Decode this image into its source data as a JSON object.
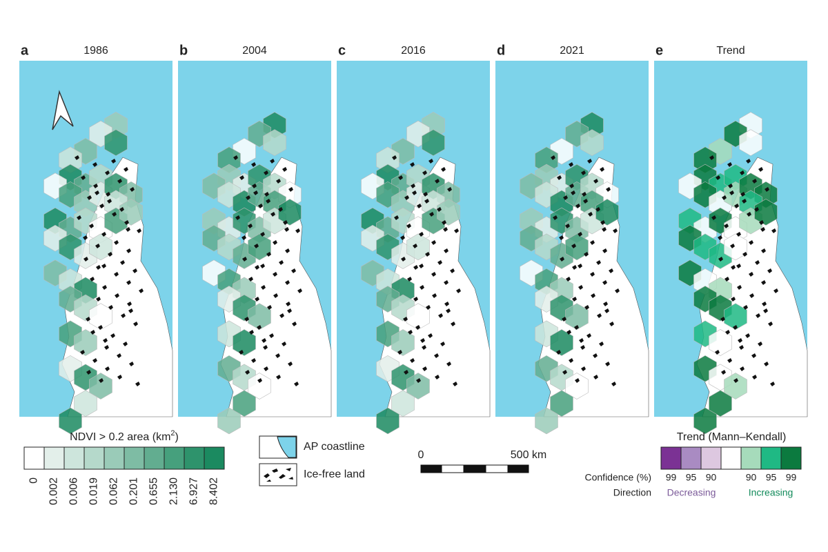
{
  "panels": [
    {
      "letter": "a",
      "title": "1986"
    },
    {
      "letter": "b",
      "title": "2004"
    },
    {
      "letter": "c",
      "title": "2016"
    },
    {
      "letter": "d",
      "title": "2021"
    },
    {
      "letter": "e",
      "title": "Trend"
    }
  ],
  "ndvi_legend": {
    "title": "NDVI > 0.2 area (km",
    "title_sup": "2",
    "title_end": ")",
    "labels": [
      "0",
      "0.002",
      "0.006",
      "0.019",
      "0.062",
      "0.201",
      "0.655",
      "2.130",
      "6.927",
      "8.402"
    ]
  },
  "map_legend": {
    "coastline": "AP coastline",
    "ice_free": "Ice-free land"
  },
  "scale_bar": {
    "start": "0",
    "end": "500 km"
  },
  "trend_legend": {
    "title": "Trend (Mann–Kendall)",
    "confidence_label": "Confidence (%)",
    "confidence": [
      "99",
      "95",
      "90",
      "90",
      "95",
      "99"
    ],
    "direction_label": "Direction",
    "decreasing": "Decreasing",
    "increasing": "Increasing"
  }
}
